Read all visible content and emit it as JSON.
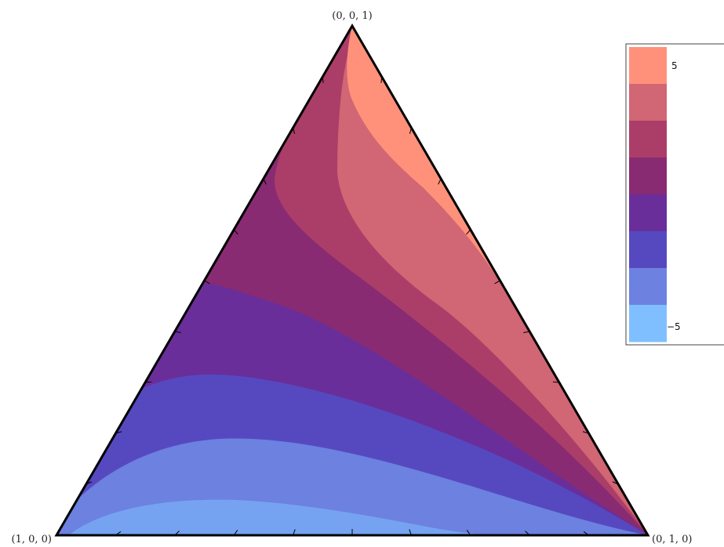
{
  "chart_data": {
    "type": "ternary-contour",
    "title": "",
    "vertex_labels": {
      "top": "(0, 0, 1)",
      "bottom_left": "(1, 0, 0)",
      "bottom_right": "(0, 1, 0)"
    },
    "ticks_per_edge": 9,
    "colorbar": {
      "range": [
        -5,
        5
      ],
      "tick_labels": [
        "5",
        "−5"
      ],
      "levels_top_to_bottom": [
        "#FF917B",
        "#D16674",
        "#AB3E68",
        "#892B73",
        "#6A2E9A",
        "#5649C0",
        "#6C81E0",
        "#7FBFFF"
      ]
    }
  }
}
